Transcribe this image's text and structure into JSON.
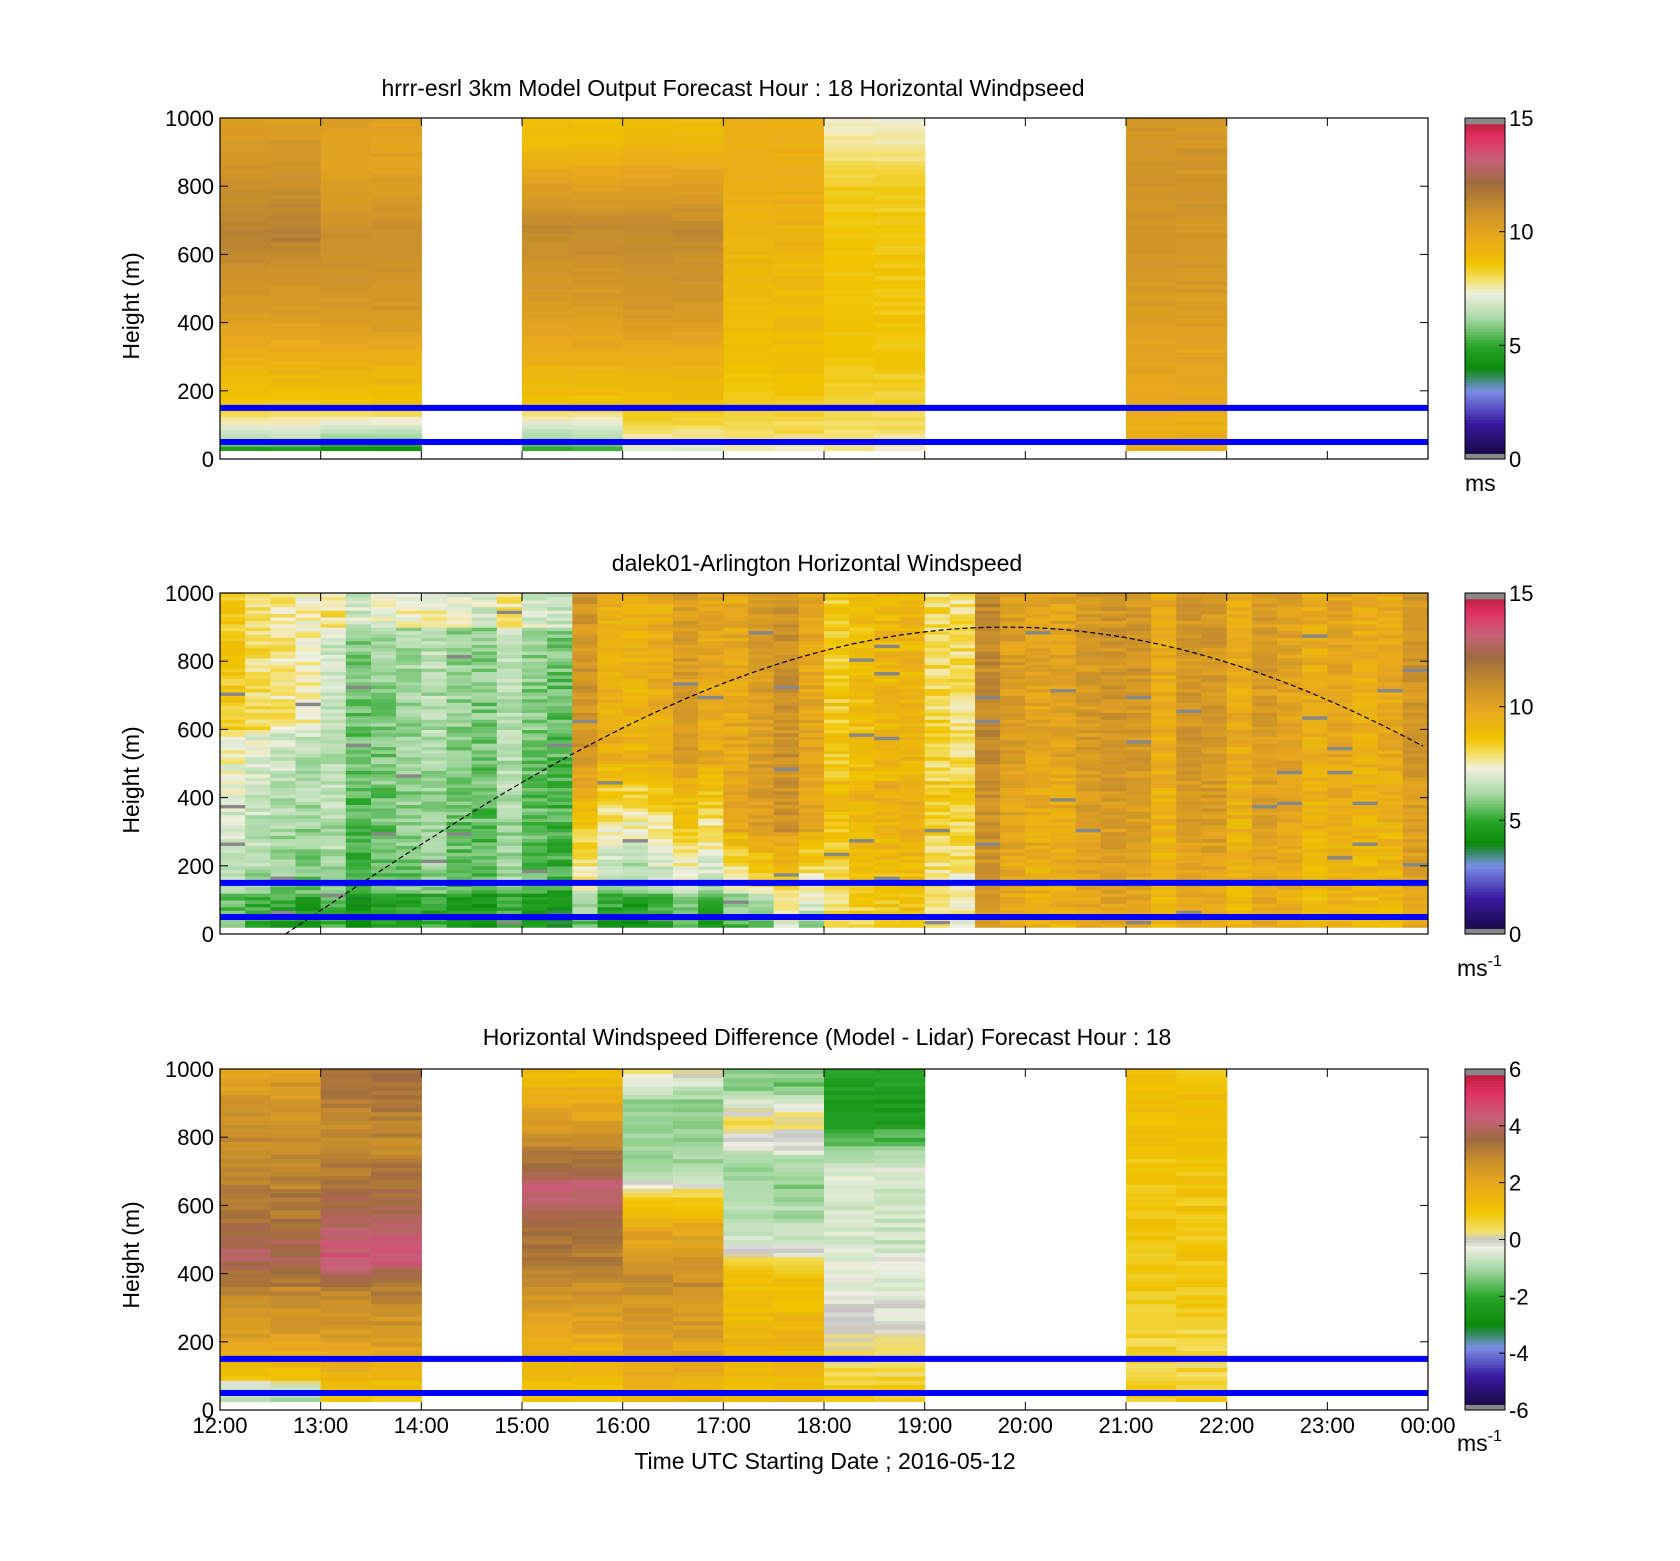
{
  "time_ticks": [
    "12:00",
    "13:00",
    "14:00",
    "15:00",
    "16:00",
    "17:00",
    "18:00",
    "19:00",
    "20:00",
    "21:00",
    "22:00",
    "23:00",
    "00:00"
  ],
  "xlabel": "Time UTC  Starting Date ; 2016-05-12",
  "reference_lines_m": [
    150,
    50
  ],
  "colors": {
    "reference_line": "#0000ff",
    "sun_curve": "#000000",
    "speed_scale": [
      "#1a0a4d",
      "#3a1aa0",
      "#7a8ee6",
      "#0a8a0a",
      "#2aa62a",
      "#a9d9a6",
      "#efefe0",
      "#f0c400",
      "#e8a81e",
      "#9e6b3f",
      "#e03060"
    ]
  },
  "chart_data": [
    {
      "type": "heatmap",
      "title": "hrrr-esrl 3km Model Output   Forecast Hour : 18 Horizontal Windpseed",
      "ylabel": "Height (m)",
      "ylim": [
        0,
        1000
      ],
      "yticks": [
        "0",
        "200",
        "400",
        "600",
        "800",
        "1000"
      ],
      "colorbar": {
        "range": [
          0,
          15
        ],
        "ticks": [
          "0",
          "5",
          "10",
          "15"
        ],
        "unit": "ms"
      },
      "hours": [
        "12:00",
        "13:00",
        "15:00",
        "16:00",
        "17:00",
        "18:00",
        "21:00"
      ],
      "profiles_ms": [
        [
          [
            25,
            4.5
          ],
          [
            60,
            6.5
          ],
          [
            110,
            7.5
          ],
          [
            160,
            8.5
          ],
          [
            300,
            9.5
          ],
          [
            420,
            10.2
          ],
          [
            660,
            11.5
          ],
          [
            780,
            11.0
          ],
          [
            920,
            10.5
          ],
          [
            1000,
            10.2
          ]
        ],
        [
          [
            25,
            4.0
          ],
          [
            60,
            6.0
          ],
          [
            110,
            7.3
          ],
          [
            160,
            8.6
          ],
          [
            300,
            9.5
          ],
          [
            420,
            10.5
          ],
          [
            660,
            11.0
          ],
          [
            780,
            10.3
          ],
          [
            920,
            10.0
          ],
          [
            1000,
            10.2
          ]
        ],
        [
          [
            25,
            5.0
          ],
          [
            60,
            6.2
          ],
          [
            110,
            7.2
          ],
          [
            160,
            8.6
          ],
          [
            300,
            9.5
          ],
          [
            420,
            10.2
          ],
          [
            680,
            11.2
          ],
          [
            800,
            10.2
          ],
          [
            920,
            9.0
          ],
          [
            1000,
            8.8
          ]
        ],
        [
          [
            25,
            7.0
          ],
          [
            60,
            7.6
          ],
          [
            110,
            8.2
          ],
          [
            160,
            8.8
          ],
          [
            300,
            9.5
          ],
          [
            420,
            10.5
          ],
          [
            680,
            11.2
          ],
          [
            800,
            10.2
          ],
          [
            920,
            9.2
          ],
          [
            1000,
            8.8
          ]
        ],
        [
          [
            25,
            7.5
          ],
          [
            110,
            8.2
          ],
          [
            300,
            8.8
          ],
          [
            600,
            9.2
          ],
          [
            800,
            9.5
          ],
          [
            1000,
            9.4
          ]
        ],
        [
          [
            25,
            7.6
          ],
          [
            110,
            8.0
          ],
          [
            300,
            8.6
          ],
          [
            600,
            8.6
          ],
          [
            800,
            8.4
          ],
          [
            900,
            7.8
          ],
          [
            1000,
            7.4
          ]
        ],
        [
          [
            25,
            9.5
          ],
          [
            110,
            9.5
          ],
          [
            200,
            9.8
          ],
          [
            400,
            10.2
          ],
          [
            600,
            10.6
          ],
          [
            800,
            10.7
          ],
          [
            1000,
            10.6
          ]
        ]
      ]
    },
    {
      "type": "heatmap",
      "title": "dalek01-Arlington  Horizontal Windspeed",
      "ylabel": "Height (m)",
      "ylim": [
        0,
        1000
      ],
      "yticks": [
        "0",
        "200",
        "400",
        "600",
        "800",
        "1000"
      ],
      "colorbar": {
        "range": [
          0,
          15
        ],
        "ticks": [
          "0",
          "5",
          "10",
          "15"
        ],
        "unit": "ms",
        "unit_exponent": "-1"
      },
      "time_range_h": [
        12.0,
        23.85
      ],
      "column_width_h": 0.25,
      "regimes": [
        {
          "t_start": 12.0,
          "t_end": 13.0,
          "low_ms": 6.0,
          "high_ms": 7.4,
          "boundary_m": 600,
          "above_ms": 8.2
        },
        {
          "t_start": 13.0,
          "t_end": 15.5,
          "low_ms": 5.4,
          "high_ms": 6.2,
          "boundary_m": 900,
          "above_ms": 7.2
        },
        {
          "t_start": 15.5,
          "t_end": 17.0,
          "low_ms": 5.6,
          "high_ms": 9.6,
          "boundary_m": 500,
          "above_ms": 10.0
        },
        {
          "t_start": 17.0,
          "t_end": 18.0,
          "low_ms": 6.2,
          "high_ms": 9.6,
          "boundary_m": 300,
          "above_ms": 10.2
        },
        {
          "t_start": 18.0,
          "t_end": 19.5,
          "low_ms": 7.9,
          "high_ms": 9.2,
          "boundary_m": 450,
          "above_ms": 8.6
        },
        {
          "t_start": 19.5,
          "t_end": 20.5,
          "low_ms": 9.8,
          "high_ms": 10.4,
          "boundary_m": 500,
          "above_ms": 10.5
        },
        {
          "t_start": 20.5,
          "t_end": 23.85,
          "low_ms": 9.3,
          "high_ms": 9.9,
          "boundary_m": 500,
          "above_ms": 10.0
        }
      ],
      "sun_curve": {
        "t_start": 12.65,
        "t_end": 23.95,
        "peak_t": 19.8,
        "peak_m": 900
      }
    },
    {
      "type": "heatmap",
      "title": "Horizontal Windspeed Difference (Model - Lidar) Forecast Hour : 18",
      "ylabel": "Height (m)",
      "ylim": [
        0,
        1000
      ],
      "yticks": [
        "0",
        "200",
        "400",
        "600",
        "800",
        "1000"
      ],
      "colorbar": {
        "range": [
          -6,
          6
        ],
        "ticks": [
          "-6",
          "-4",
          "-2",
          "0",
          "2",
          "4",
          "6"
        ],
        "unit": "ms",
        "unit_exponent": "-1"
      },
      "hours": [
        "12:00",
        "13:00",
        "15:00",
        "16:00",
        "17:00",
        "18:00",
        "21:00"
      ],
      "profiles_ms": [
        [
          [
            25,
            -1.0
          ],
          [
            70,
            -0.6
          ],
          [
            100,
            1.2
          ],
          [
            200,
            2.2
          ],
          [
            350,
            3.0
          ],
          [
            450,
            3.9
          ],
          [
            600,
            3.2
          ],
          [
            800,
            2.8
          ],
          [
            1000,
            2.2
          ]
        ],
        [
          [
            25,
            0.8
          ],
          [
            100,
            1.5
          ],
          [
            200,
            2.3
          ],
          [
            350,
            3.0
          ],
          [
            450,
            4.5
          ],
          [
            600,
            3.6
          ],
          [
            800,
            2.8
          ],
          [
            1000,
            3.5
          ]
        ],
        [
          [
            25,
            1.0
          ],
          [
            200,
            1.8
          ],
          [
            400,
            3.0
          ],
          [
            550,
            3.6
          ],
          [
            650,
            4.2
          ],
          [
            750,
            3.2
          ],
          [
            850,
            2.2
          ],
          [
            1000,
            1.2
          ]
        ],
        [
          [
            25,
            1.5
          ],
          [
            200,
            2.2
          ],
          [
            400,
            2.8
          ],
          [
            550,
            1.8
          ],
          [
            620,
            0.8
          ],
          [
            700,
            -1.0
          ],
          [
            900,
            -1.2
          ],
          [
            1000,
            0.2
          ]
        ],
        [
          [
            25,
            1.2
          ],
          [
            200,
            1.5
          ],
          [
            400,
            1.0
          ],
          [
            500,
            -0.6
          ],
          [
            700,
            -1.2
          ],
          [
            850,
            0.5
          ],
          [
            950,
            -1.5
          ],
          [
            1000,
            -1.2
          ]
        ],
        [
          [
            25,
            0.8
          ],
          [
            150,
            0.4
          ],
          [
            300,
            -0.2
          ],
          [
            500,
            -0.6
          ],
          [
            700,
            -0.4
          ],
          [
            850,
            -2.4
          ],
          [
            1000,
            -2.2
          ]
        ],
        [
          [
            25,
            0.8
          ],
          [
            150,
            0.5
          ],
          [
            300,
            0.8
          ],
          [
            500,
            1.0
          ],
          [
            700,
            1.0
          ],
          [
            900,
            1.2
          ],
          [
            1000,
            1.1
          ]
        ]
      ]
    }
  ]
}
